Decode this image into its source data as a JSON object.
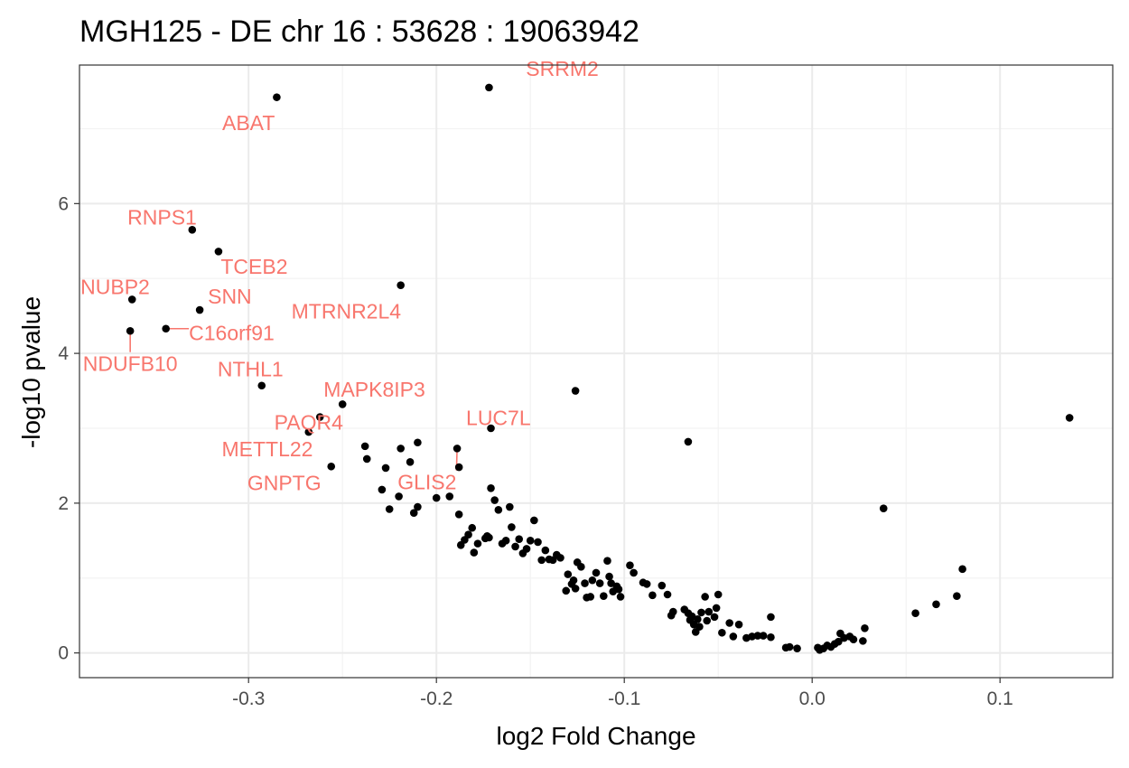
{
  "chart_data": {
    "type": "scatter",
    "title": "MGH125 - DE chr 16 : 53628 : 19063942",
    "xlabel": "log2 Fold Change",
    "ylabel": "-log10 pvalue",
    "xlim": [
      -0.39,
      0.16
    ],
    "ylim": [
      -0.33,
      7.85
    ],
    "x_ticks": [
      -0.3,
      -0.2,
      -0.1,
      0.0,
      0.1
    ],
    "x_tick_labels": [
      "-0.3",
      "-0.2",
      "-0.1",
      "0.0",
      "0.1"
    ],
    "y_ticks": [
      0,
      2,
      4,
      6
    ],
    "y_tick_labels": [
      "0",
      "2",
      "4",
      "6"
    ],
    "grid": true,
    "theme": "bw",
    "point_color": "#000000",
    "label_color": "#F8766D",
    "labeled_points": [
      {
        "gene": "SRRM2",
        "x": -0.172,
        "y": 7.55,
        "lx": -0.133,
        "ly": 7.8
      },
      {
        "gene": "ABAT",
        "x": -0.285,
        "y": 7.42,
        "lx": -0.3,
        "ly": 7.08
      },
      {
        "gene": "RNPS1",
        "x": -0.33,
        "y": 5.65,
        "lx": -0.346,
        "ly": 5.82
      },
      {
        "gene": "TCEB2",
        "x": -0.316,
        "y": 5.36,
        "lx": -0.297,
        "ly": 5.16
      },
      {
        "gene": "NUBP2",
        "x": -0.362,
        "y": 4.72,
        "lx": -0.371,
        "ly": 4.89
      },
      {
        "gene": "SNN",
        "x": -0.326,
        "y": 4.58,
        "lx": -0.31,
        "ly": 4.76
      },
      {
        "gene": "MTRNR2L4",
        "x": -0.219,
        "y": 4.91,
        "lx": -0.248,
        "ly": 4.56
      },
      {
        "gene": "C16orf91",
        "x": -0.344,
        "y": 4.33,
        "lx": -0.309,
        "ly": 4.27,
        "segment": true
      },
      {
        "gene": "NDUFB10",
        "x": -0.363,
        "y": 4.3,
        "lx": -0.363,
        "ly": 3.86,
        "segment": true
      },
      {
        "gene": "NTHL1",
        "x": -0.293,
        "y": 3.57,
        "lx": -0.299,
        "ly": 3.79
      },
      {
        "gene": "MAPK8IP3",
        "x": -0.25,
        "y": 3.32,
        "lx": -0.233,
        "ly": 3.52
      },
      {
        "gene": "PAQR4",
        "x": -0.262,
        "y": 3.15,
        "lx": -0.268,
        "ly": 3.08
      },
      {
        "gene": "LUC7L",
        "x": -0.171,
        "y": 3.0,
        "lx": -0.167,
        "ly": 3.14
      },
      {
        "gene": "METTL22",
        "x": -0.268,
        "y": 2.95,
        "lx": -0.29,
        "ly": 2.72
      },
      {
        "gene": "GNPTG",
        "x": -0.256,
        "y": 2.49,
        "lx": -0.281,
        "ly": 2.27
      },
      {
        "gene": "GLIS2",
        "x": -0.189,
        "y": 2.73,
        "lx": -0.205,
        "ly": 2.28,
        "segment": true
      }
    ],
    "points": [
      [
        -0.126,
        3.5
      ],
      [
        -0.066,
        2.82
      ],
      [
        0.137,
        3.14
      ],
      [
        0.038,
        1.93
      ],
      [
        0.08,
        1.12
      ],
      [
        0.077,
        0.76
      ],
      [
        0.066,
        0.65
      ],
      [
        0.055,
        0.53
      ],
      [
        0.028,
        0.33
      ],
      [
        0.027,
        0.16
      ],
      [
        0.022,
        0.18
      ],
      [
        0.02,
        0.22
      ],
      [
        0.017,
        0.2
      ],
      [
        0.015,
        0.26
      ],
      [
        0.014,
        0.15
      ],
      [
        0.012,
        0.12
      ],
      [
        0.01,
        0.08
      ],
      [
        0.008,
        0.1
      ],
      [
        0.006,
        0.06
      ],
      [
        0.004,
        0.04
      ],
      [
        0.003,
        0.07
      ],
      [
        -0.008,
        0.06
      ],
      [
        -0.012,
        0.08
      ],
      [
        -0.014,
        0.07
      ],
      [
        -0.022,
        0.48
      ],
      [
        -0.022,
        0.21
      ],
      [
        -0.026,
        0.23
      ],
      [
        -0.029,
        0.23
      ],
      [
        -0.032,
        0.22
      ],
      [
        -0.035,
        0.2
      ],
      [
        -0.039,
        0.38
      ],
      [
        -0.042,
        0.22
      ],
      [
        -0.044,
        0.4
      ],
      [
        -0.048,
        0.27
      ],
      [
        -0.05,
        0.78
      ],
      [
        -0.051,
        0.6
      ],
      [
        -0.052,
        0.48
      ],
      [
        -0.055,
        0.55
      ],
      [
        -0.056,
        0.43
      ],
      [
        -0.057,
        0.75
      ],
      [
        -0.059,
        0.54
      ],
      [
        -0.06,
        0.35
      ],
      [
        -0.061,
        0.45
      ],
      [
        -0.062,
        0.28
      ],
      [
        -0.063,
        0.38
      ],
      [
        -0.064,
        0.49
      ],
      [
        -0.065,
        0.44
      ],
      [
        -0.066,
        0.53
      ],
      [
        -0.068,
        0.58
      ],
      [
        -0.074,
        0.55
      ],
      [
        -0.075,
        0.5
      ],
      [
        -0.077,
        0.78
      ],
      [
        -0.08,
        0.9
      ],
      [
        -0.085,
        0.77
      ],
      [
        -0.088,
        0.92
      ],
      [
        -0.09,
        0.94
      ],
      [
        -0.095,
        1.07
      ],
      [
        -0.097,
        1.17
      ],
      [
        -0.102,
        0.75
      ],
      [
        -0.103,
        0.85
      ],
      [
        -0.104,
        0.89
      ],
      [
        -0.106,
        0.82
      ],
      [
        -0.107,
        0.93
      ],
      [
        -0.108,
        1.02
      ],
      [
        -0.109,
        1.23
      ],
      [
        -0.111,
        0.76
      ],
      [
        -0.113,
        0.93
      ],
      [
        -0.115,
        1.07
      ],
      [
        -0.117,
        0.97
      ],
      [
        -0.118,
        0.75
      ],
      [
        -0.12,
        0.74
      ],
      [
        -0.121,
        0.93
      ],
      [
        -0.123,
        1.15
      ],
      [
        -0.125,
        1.21
      ],
      [
        -0.126,
        0.86
      ],
      [
        -0.127,
        0.97
      ],
      [
        -0.128,
        0.92
      ],
      [
        -0.13,
        1.05
      ],
      [
        -0.131,
        0.83
      ],
      [
        -0.134,
        1.27
      ],
      [
        -0.136,
        1.31
      ],
      [
        -0.138,
        1.24
      ],
      [
        -0.14,
        1.25
      ],
      [
        -0.142,
        1.37
      ],
      [
        -0.144,
        1.24
      ],
      [
        -0.146,
        1.48
      ],
      [
        -0.148,
        1.77
      ],
      [
        -0.15,
        1.5
      ],
      [
        -0.152,
        1.39
      ],
      [
        -0.154,
        1.33
      ],
      [
        -0.156,
        1.52
      ],
      [
        -0.158,
        1.42
      ],
      [
        -0.16,
        1.68
      ],
      [
        -0.161,
        1.95
      ],
      [
        -0.163,
        1.5
      ],
      [
        -0.165,
        1.46
      ],
      [
        -0.167,
        1.91
      ],
      [
        -0.169,
        2.04
      ],
      [
        -0.171,
        2.2
      ],
      [
        -0.173,
        1.56
      ],
      [
        -0.174,
        1.53
      ],
      [
        -0.178,
        1.46
      ],
      [
        -0.18,
        1.34
      ],
      [
        -0.181,
        1.67
      ],
      [
        -0.188,
        1.85
      ],
      [
        -0.188,
        2.48
      ],
      [
        -0.193,
        2.09
      ],
      [
        -0.2,
        2.07
      ],
      [
        -0.21,
        1.95
      ],
      [
        -0.212,
        1.87
      ],
      [
        -0.214,
        2.55
      ],
      [
        -0.219,
        2.73
      ],
      [
        -0.22,
        2.09
      ],
      [
        -0.225,
        1.92
      ],
      [
        -0.227,
        2.47
      ],
      [
        -0.229,
        2.18
      ],
      [
        -0.237,
        2.59
      ],
      [
        -0.238,
        2.76
      ],
      [
        -0.21,
        2.81
      ],
      [
        -0.187,
        1.44
      ],
      [
        -0.185,
        1.51
      ],
      [
        -0.183,
        1.58
      ],
      [
        -0.172,
        1.54
      ]
    ]
  }
}
